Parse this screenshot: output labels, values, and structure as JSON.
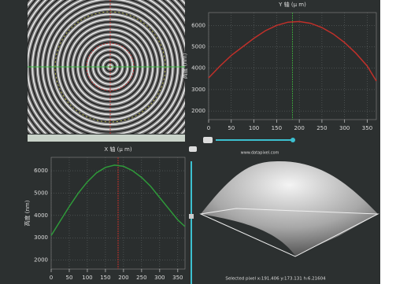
{
  "chart_data": [
    {
      "type": "line",
      "title": "Y 轴 (μ m)",
      "y_label": "高度 (nm)",
      "x": [
        0,
        25,
        50,
        75,
        100,
        125,
        150,
        175,
        200,
        225,
        250,
        275,
        300,
        325,
        350,
        370
      ],
      "series": [
        {
          "color": "#c0302a",
          "values": [
            3550,
            4100,
            4600,
            5000,
            5400,
            5750,
            6000,
            6150,
            6180,
            6100,
            5900,
            5600,
            5200,
            4700,
            4100,
            3400
          ]
        }
      ],
      "xlim": [
        0,
        370
      ],
      "ylim": [
        1600,
        6600
      ],
      "xticks": [
        0,
        50,
        100,
        150,
        200,
        250,
        300,
        350
      ],
      "yticks": [
        2000,
        3000,
        4000,
        5000,
        6000
      ],
      "grid": true,
      "cursor_x": 185,
      "cursor_color": "#3a9a3a"
    },
    {
      "type": "line",
      "title": "X 轴 (μ m)",
      "y_label": "高度 (nm)",
      "x": [
        0,
        25,
        50,
        75,
        100,
        125,
        150,
        175,
        200,
        225,
        250,
        275,
        300,
        325,
        350,
        370
      ],
      "series": [
        {
          "color": "#2f9a3a",
          "values": [
            3100,
            3750,
            4400,
            5000,
            5500,
            5900,
            6150,
            6250,
            6200,
            6000,
            5700,
            5300,
            4800,
            4300,
            3800,
            3500
          ]
        }
      ],
      "xlim": [
        0,
        370
      ],
      "ylim": [
        1600,
        6600
      ],
      "xticks": [
        0,
        50,
        100,
        150,
        200,
        250,
        300,
        350
      ],
      "yticks": [
        2000,
        3000,
        4000,
        5000,
        6000
      ],
      "grid": true,
      "cursor_x": 185,
      "cursor_color": "#c0302a"
    }
  ],
  "viewer": {
    "watermark": "www.datapixel.com",
    "status": "Selected pixel x:191.406 y:173.131 h:6.21604"
  }
}
